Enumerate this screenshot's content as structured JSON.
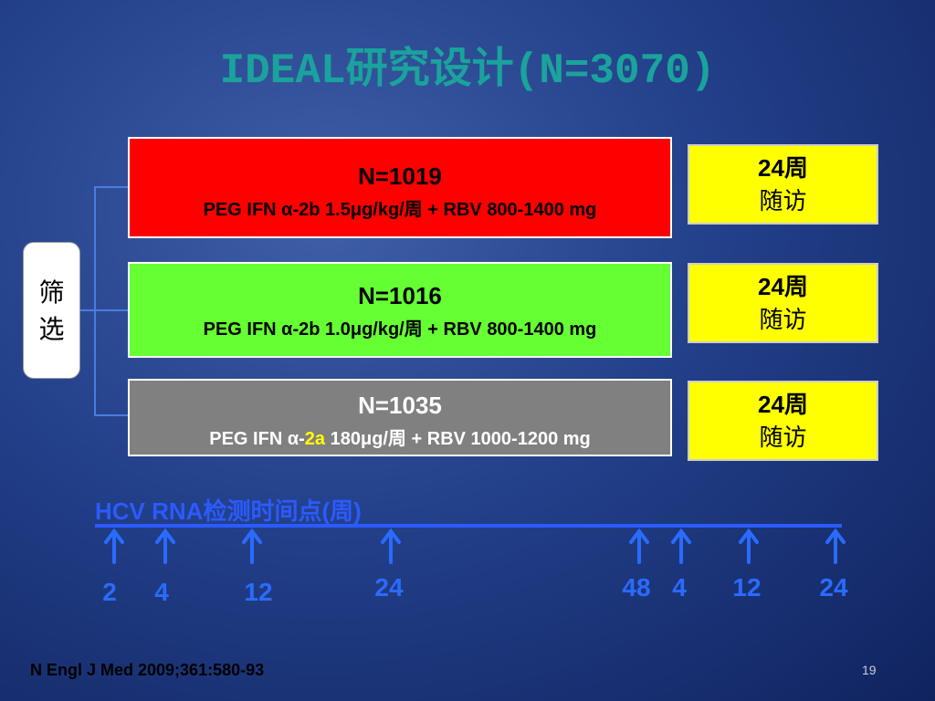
{
  "title": "IDEAL研究设计(N=3070)",
  "screening": {
    "line1": "筛",
    "line2": "选"
  },
  "arms": [
    {
      "n": "N=1019",
      "regimen": [
        "PEG IFN α-2b 1.5μg/kg/周 + RBV 800-1400 mg"
      ]
    },
    {
      "n": "N=1016",
      "regimen": [
        "PEG IFN α-2b 1.0μg/kg/周 + RBV 800-1400 mg"
      ]
    },
    {
      "n": "N=1035",
      "regimen": [
        "PEG IFN α-",
        "2a",
        " 180μg/周 + RBV 1000-1200 mg"
      ]
    }
  ],
  "follow_up": [
    {
      "line1": "24周",
      "line2": "随访"
    },
    {
      "line1": "24周",
      "line2": "随访"
    },
    {
      "line1": "24周",
      "line2": "随访"
    }
  ],
  "timeline": {
    "label": "HCV RNA检测时间点(周)",
    "points": [
      "2",
      "4",
      "12",
      "24",
      "48",
      "4",
      "12",
      "24"
    ]
  },
  "footer": {
    "reference": "N Engl J Med 2009;361:580-93",
    "page": "19"
  }
}
